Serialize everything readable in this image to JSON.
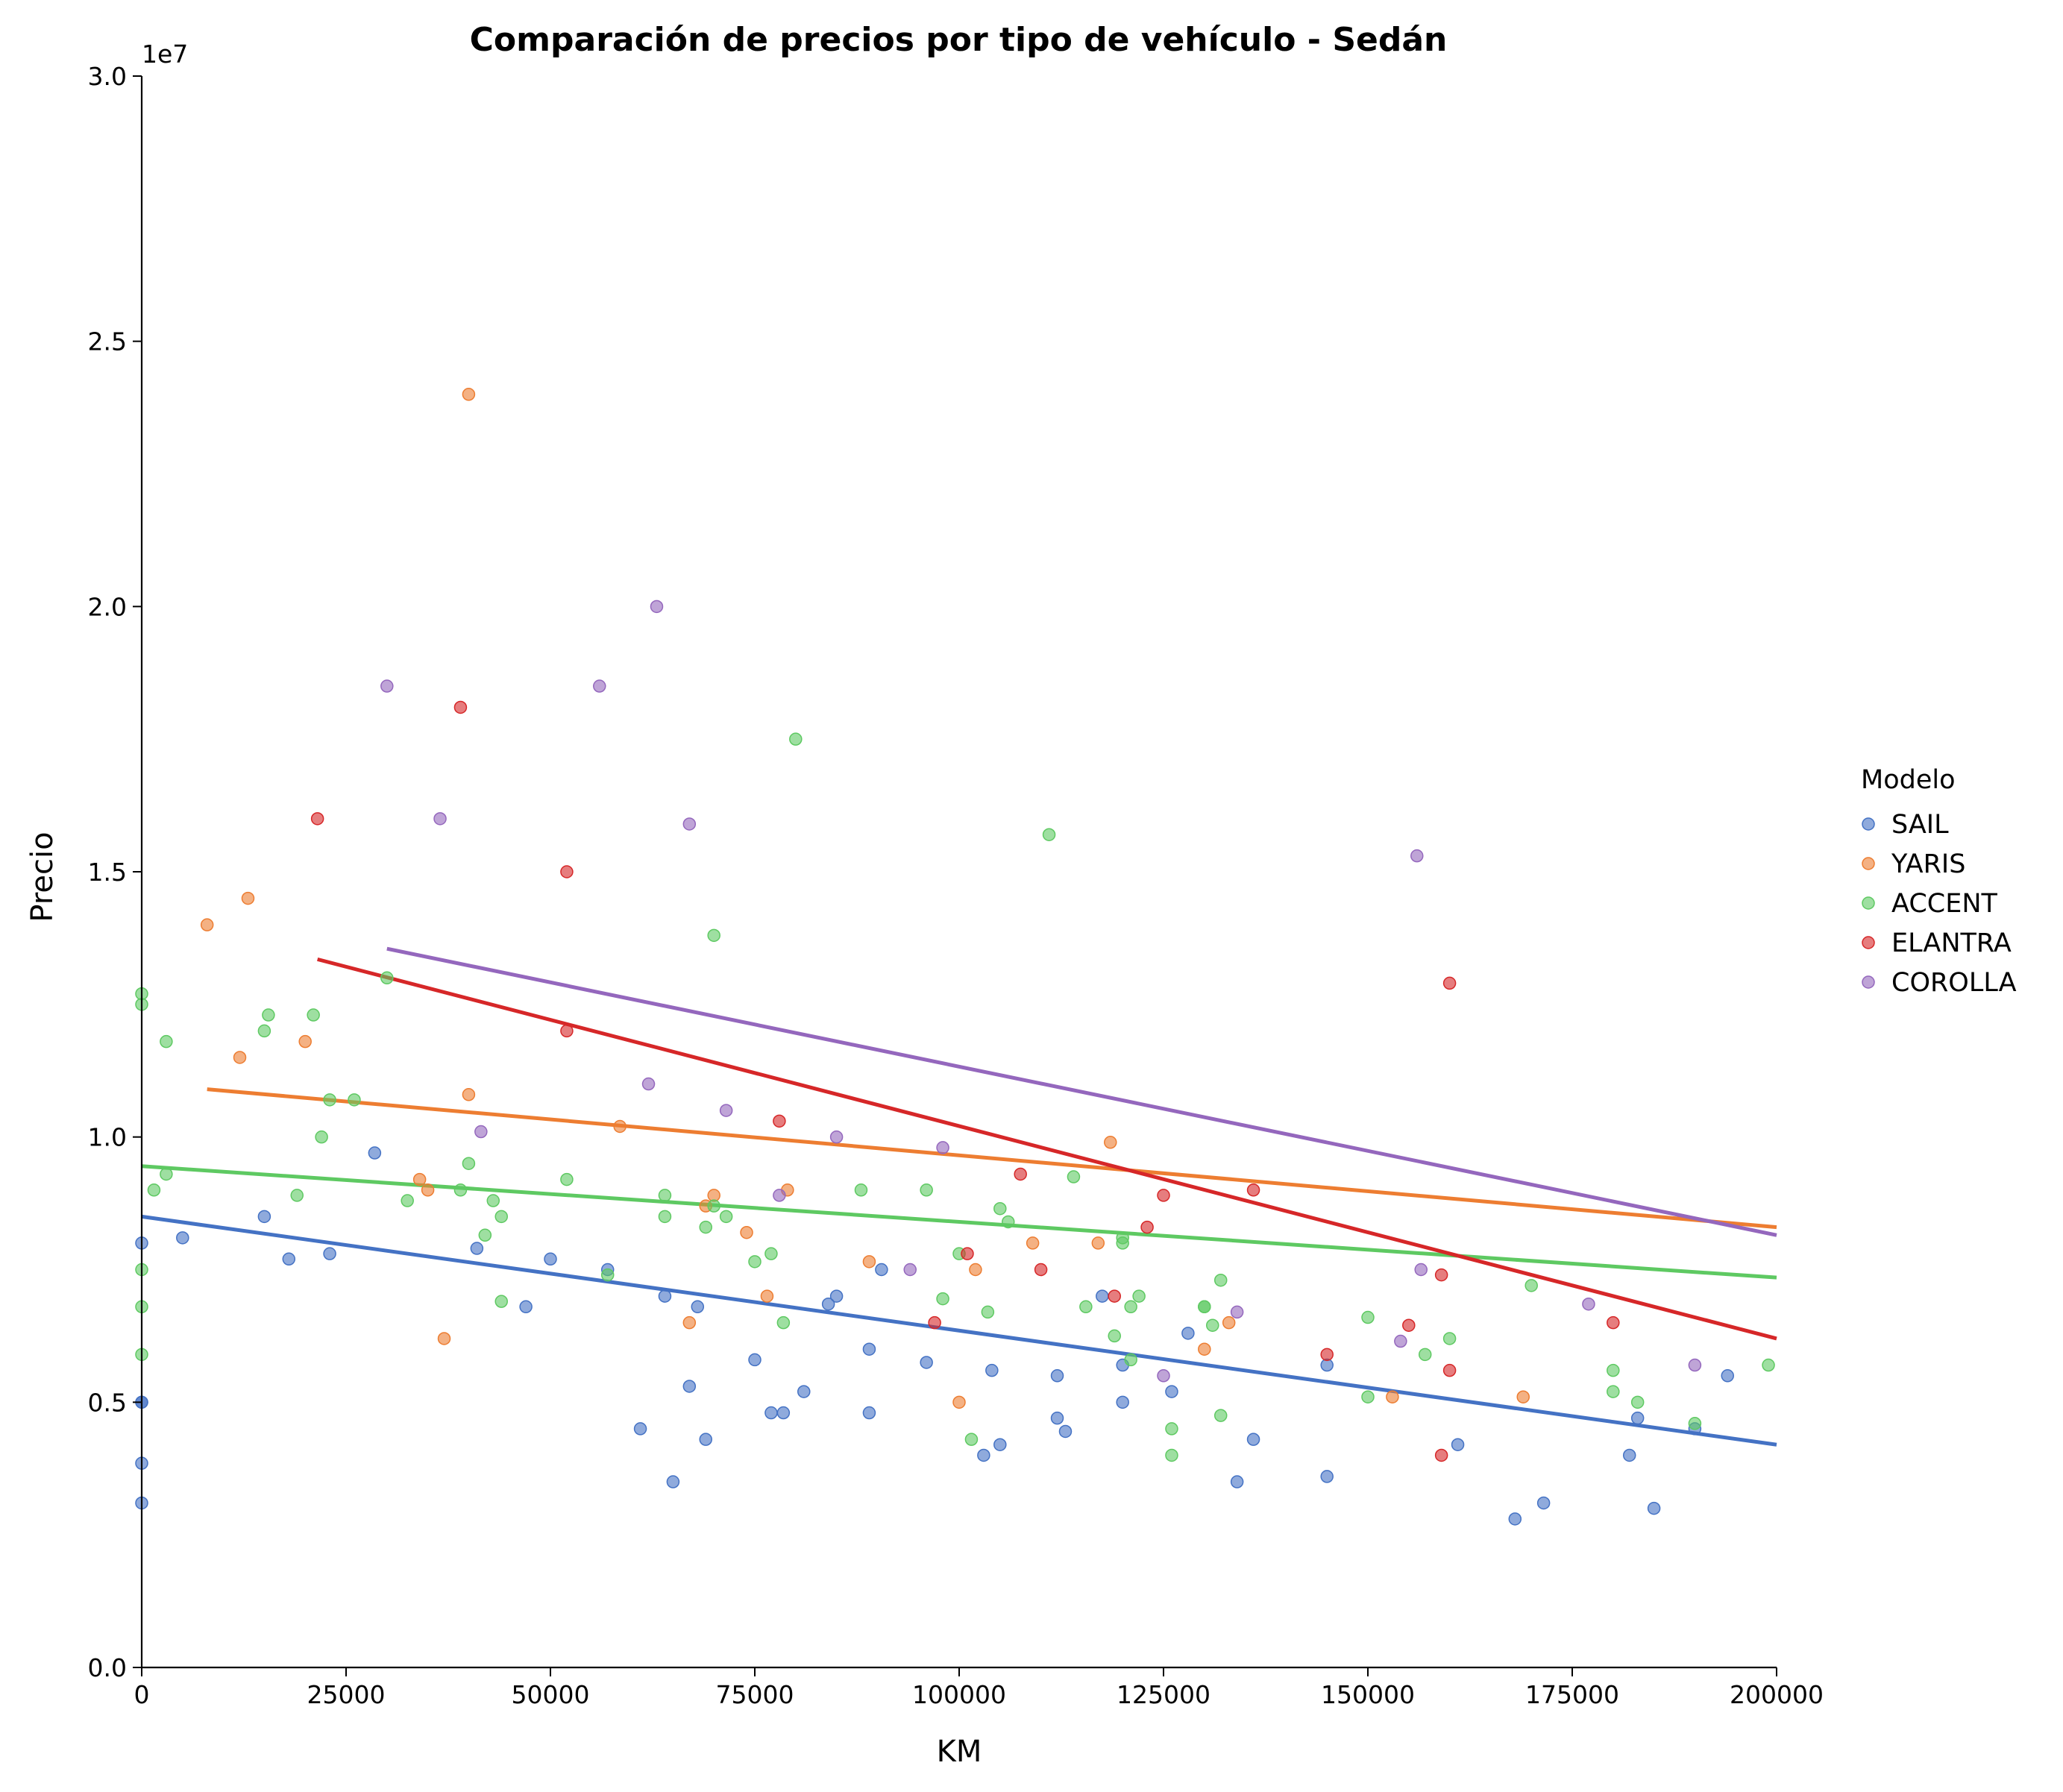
{
  "chart_data": {
    "type": "scatter",
    "title": "Comparación de precios por tipo de vehículo - Sedán",
    "xlabel": "KM",
    "ylabel": "Precio",
    "y_offset_text": "1e7",
    "xlim": [
      0,
      200000
    ],
    "ylim": [
      0,
      30000000
    ],
    "x_ticks": [
      0,
      25000,
      50000,
      75000,
      100000,
      125000,
      150000,
      175000,
      200000
    ],
    "x_tick_labels": [
      "0",
      "25000",
      "50000",
      "75000",
      "100000",
      "125000",
      "150000",
      "175000",
      "200000"
    ],
    "y_ticks": [
      0,
      5000000,
      10000000,
      15000000,
      20000000,
      25000000,
      30000000
    ],
    "y_tick_labels": [
      "0.0",
      "0.5",
      "1.0",
      "1.5",
      "2.0",
      "2.5",
      "3.0"
    ],
    "grid": false,
    "legend": {
      "title": "Modelo",
      "placement": "right"
    },
    "series": [
      {
        "name": "SAIL",
        "color": "#4472c4",
        "points": [
          [
            0,
            8000000
          ],
          [
            0,
            5000000
          ],
          [
            0,
            5000000
          ],
          [
            0,
            3850000
          ],
          [
            0,
            3100000
          ],
          [
            5000,
            8100000
          ],
          [
            15000,
            8500000
          ],
          [
            18000,
            7700000
          ],
          [
            23000,
            7800000
          ],
          [
            28500,
            9700000
          ],
          [
            41000,
            7900000
          ],
          [
            47000,
            6800000
          ],
          [
            50000,
            7700000
          ],
          [
            57000,
            7500000
          ],
          [
            61000,
            4500000
          ],
          [
            64000,
            7000000
          ],
          [
            65000,
            3500000
          ],
          [
            67000,
            5300000
          ],
          [
            68000,
            6800000
          ],
          [
            69000,
            4300000
          ],
          [
            75000,
            5800000
          ],
          [
            77000,
            4800000
          ],
          [
            78500,
            4800000
          ],
          [
            81000,
            5200000
          ],
          [
            84000,
            6850000
          ],
          [
            85000,
            7000000
          ],
          [
            89000,
            6000000
          ],
          [
            89000,
            4800000
          ],
          [
            90500,
            7500000
          ],
          [
            96000,
            5750000
          ],
          [
            103000,
            4000000
          ],
          [
            104000,
            5600000
          ],
          [
            105000,
            4200000
          ],
          [
            112000,
            4700000
          ],
          [
            112000,
            5500000
          ],
          [
            113000,
            4450000
          ],
          [
            117500,
            7000000
          ],
          [
            120000,
            5700000
          ],
          [
            120000,
            5000000
          ],
          [
            126000,
            5200000
          ],
          [
            128000,
            6300000
          ],
          [
            134000,
            3500000
          ],
          [
            136000,
            4300000
          ],
          [
            145000,
            3600000
          ],
          [
            145000,
            5700000
          ],
          [
            161000,
            4200000
          ],
          [
            168000,
            2800000
          ],
          [
            171500,
            3100000
          ],
          [
            182000,
            4000000
          ],
          [
            183000,
            4700000
          ],
          [
            185000,
            3000000
          ],
          [
            190000,
            4500000
          ],
          [
            194000,
            5500000
          ]
        ],
        "trend": [
          [
            0,
            8500000
          ],
          [
            200000,
            4200000
          ]
        ]
      },
      {
        "name": "YARIS",
        "color": "#ed7d31",
        "points": [
          [
            8000,
            14000000
          ],
          [
            12000,
            11500000
          ],
          [
            13000,
            14500000
          ],
          [
            20000,
            11800000
          ],
          [
            34000,
            9200000
          ],
          [
            35000,
            9000000
          ],
          [
            37000,
            6200000
          ],
          [
            40000,
            24000000
          ],
          [
            40000,
            10800000
          ],
          [
            58500,
            10200000
          ],
          [
            67000,
            6500000
          ],
          [
            69000,
            8700000
          ],
          [
            70000,
            8900000
          ],
          [
            74000,
            8200000
          ],
          [
            76500,
            7000000
          ],
          [
            79000,
            9000000
          ],
          [
            89000,
            7650000
          ],
          [
            100000,
            5000000
          ],
          [
            102000,
            7500000
          ],
          [
            109000,
            8000000
          ],
          [
            117000,
            8000000
          ],
          [
            118500,
            9900000
          ],
          [
            130000,
            6000000
          ],
          [
            133000,
            6500000
          ],
          [
            153000,
            5100000
          ],
          [
            169000,
            5100000
          ]
        ],
        "trend": [
          [
            8000,
            10900000
          ],
          [
            200000,
            8300000
          ]
        ]
      },
      {
        "name": "ACCENT",
        "color": "#5ec962",
        "points": [
          [
            0,
            12700000
          ],
          [
            0,
            12500000
          ],
          [
            0,
            7500000
          ],
          [
            0,
            6800000
          ],
          [
            0,
            5900000
          ],
          [
            1500,
            9000000
          ],
          [
            3000,
            9300000
          ],
          [
            3000,
            11800000
          ],
          [
            15000,
            12000000
          ],
          [
            15500,
            12300000
          ],
          [
            19000,
            8900000
          ],
          [
            21000,
            12300000
          ],
          [
            22000,
            10000000
          ],
          [
            23000,
            10700000
          ],
          [
            26000,
            10700000
          ],
          [
            30000,
            13000000
          ],
          [
            32500,
            8800000
          ],
          [
            39000,
            9000000
          ],
          [
            40000,
            9500000
          ],
          [
            42000,
            8150000
          ],
          [
            43000,
            8800000
          ],
          [
            44000,
            8500000
          ],
          [
            44000,
            6900000
          ],
          [
            52000,
            9200000
          ],
          [
            57000,
            7400000
          ],
          [
            64000,
            8900000
          ],
          [
            64000,
            8500000
          ],
          [
            69000,
            8300000
          ],
          [
            70000,
            8700000
          ],
          [
            70000,
            13800000
          ],
          [
            71500,
            8500000
          ],
          [
            75000,
            7650000
          ],
          [
            77000,
            7800000
          ],
          [
            78500,
            6500000
          ],
          [
            80000,
            17500000
          ],
          [
            88000,
            9000000
          ],
          [
            96000,
            9000000
          ],
          [
            98000,
            6950000
          ],
          [
            100000,
            7800000
          ],
          [
            101500,
            4300000
          ],
          [
            103500,
            6700000
          ],
          [
            105000,
            8650000
          ],
          [
            106000,
            8400000
          ],
          [
            111000,
            15700000
          ],
          [
            114000,
            9250000
          ],
          [
            115500,
            6800000
          ],
          [
            119000,
            6250000
          ],
          [
            120000,
            8000000
          ],
          [
            120000,
            8100000
          ],
          [
            121000,
            6800000
          ],
          [
            121000,
            5800000
          ],
          [
            122000,
            7000000
          ],
          [
            126000,
            4500000
          ],
          [
            126000,
            4000000
          ],
          [
            130000,
            6800000
          ],
          [
            130000,
            6800000
          ],
          [
            131000,
            6450000
          ],
          [
            132000,
            7300000
          ],
          [
            132000,
            4750000
          ],
          [
            150000,
            6600000
          ],
          [
            150000,
            5100000
          ],
          [
            157000,
            5900000
          ],
          [
            160000,
            6200000
          ],
          [
            170000,
            7200000
          ],
          [
            180000,
            5600000
          ],
          [
            180000,
            5200000
          ],
          [
            183000,
            5000000
          ],
          [
            190000,
            4600000
          ],
          [
            199000,
            5700000
          ]
        ],
        "trend": [
          [
            0,
            9450000
          ],
          [
            200000,
            7350000
          ]
        ]
      },
      {
        "name": "ELANTRA",
        "color": "#d62728",
        "points": [
          [
            21500,
            16000000
          ],
          [
            39000,
            18100000
          ],
          [
            52000,
            15000000
          ],
          [
            52000,
            12000000
          ],
          [
            78000,
            10300000
          ],
          [
            97000,
            6500000
          ],
          [
            101000,
            7800000
          ],
          [
            107500,
            9300000
          ],
          [
            110000,
            7500000
          ],
          [
            119000,
            7000000
          ],
          [
            123000,
            8300000
          ],
          [
            125000,
            8900000
          ],
          [
            136000,
            9000000
          ],
          [
            145000,
            5900000
          ],
          [
            155000,
            6450000
          ],
          [
            159000,
            7400000
          ],
          [
            159000,
            4000000
          ],
          [
            160000,
            12900000
          ],
          [
            160000,
            5600000
          ],
          [
            180000,
            6500000
          ]
        ],
        "trend": [
          [
            21500,
            13350000
          ],
          [
            200000,
            6200000
          ]
        ]
      },
      {
        "name": "COROLLA",
        "color": "#9467bd",
        "points": [
          [
            30000,
            18500000
          ],
          [
            36500,
            16000000
          ],
          [
            41500,
            10100000
          ],
          [
            56000,
            18500000
          ],
          [
            62000,
            11000000
          ],
          [
            63000,
            20000000
          ],
          [
            67000,
            15900000
          ],
          [
            71500,
            10500000
          ],
          [
            78000,
            8900000
          ],
          [
            85000,
            10000000
          ],
          [
            94000,
            7500000
          ],
          [
            98000,
            9800000
          ],
          [
            125000,
            5500000
          ],
          [
            134000,
            6700000
          ],
          [
            154000,
            6150000
          ],
          [
            156000,
            15300000
          ],
          [
            156500,
            7500000
          ],
          [
            177000,
            6850000
          ],
          [
            190000,
            5700000
          ]
        ],
        "trend": [
          [
            30000,
            13550000
          ],
          [
            200000,
            8150000
          ]
        ]
      }
    ]
  }
}
